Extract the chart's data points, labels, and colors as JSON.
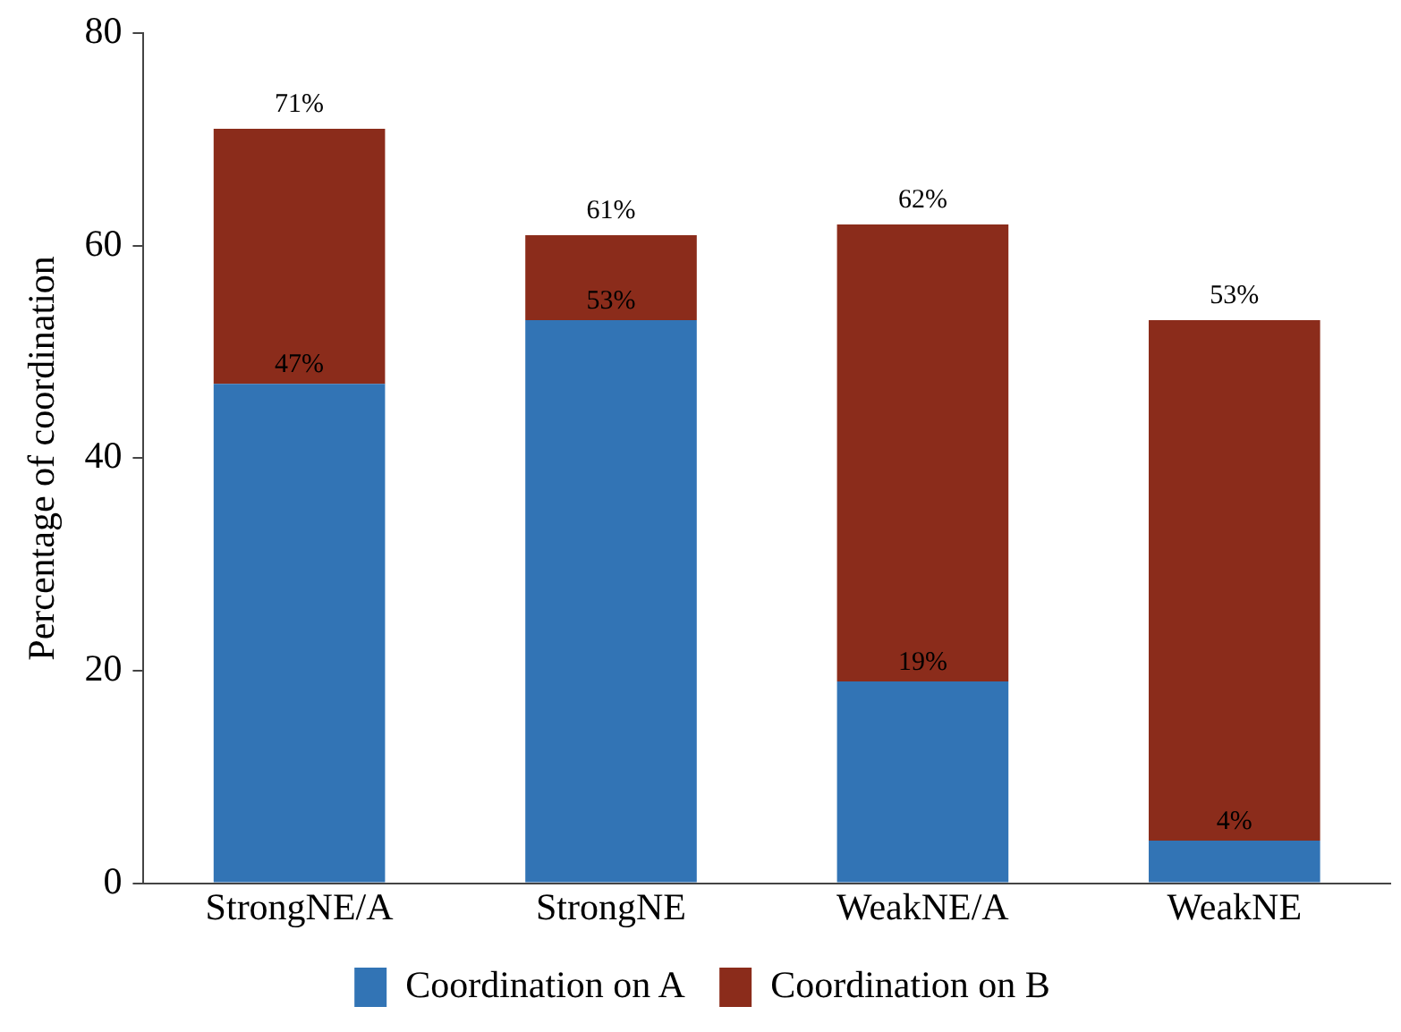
{
  "chart_data": {
    "type": "bar",
    "stacked": true,
    "ylabel": "Percentage of coordination",
    "categories": [
      "StrongNE/A",
      "StrongNE",
      "WeakNE/A",
      "WeakNE"
    ],
    "series": [
      {
        "name": "Coordination on A",
        "color": "#3274b5",
        "values": [
          47,
          53,
          19,
          4
        ],
        "value_labels": [
          "47%",
          "53%",
          "19%",
          "4%"
        ]
      },
      {
        "name": "Coordination on B",
        "color": "#8b2c1b",
        "values": [
          24,
          8,
          43,
          49
        ]
      }
    ],
    "totals": [
      "71%",
      "61%",
      "62%",
      "53%"
    ],
    "ylim": [
      0,
      80
    ],
    "yticks": [
      0,
      20,
      40,
      60,
      80
    ],
    "grid": false,
    "legend": "bottom"
  }
}
